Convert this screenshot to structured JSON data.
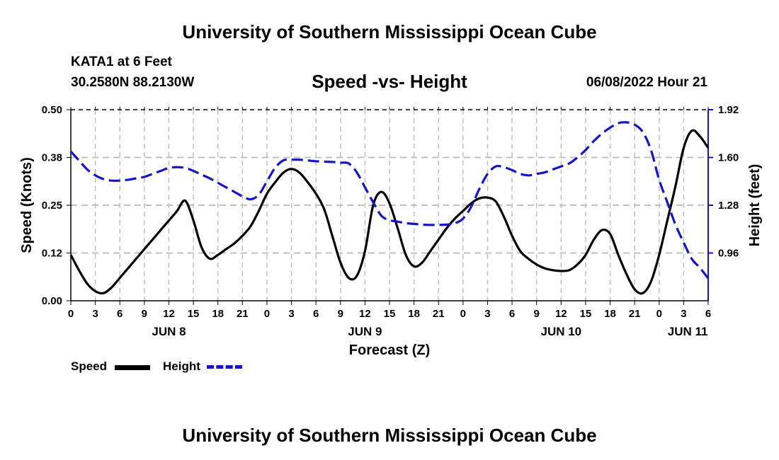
{
  "header": {
    "title": "University of Southern Mississippi Ocean Cube",
    "station": "KATA1 at 6 Feet",
    "coordinates": "30.2580N  88.2130W",
    "chart_title": "Speed -vs- Height",
    "datetime": "06/08/2022 Hour 21"
  },
  "footer": {
    "title": "University of Southern Mississippi Ocean Cube"
  },
  "legend": {
    "speed_label": "Speed",
    "height_label": "Height"
  },
  "colors": {
    "speed": "#000000",
    "height": "#1515c8",
    "grid": "#c0c0c0"
  },
  "chart_data": {
    "type": "line",
    "title": "Speed -vs- Height",
    "xlabel": "Forecast (Z)",
    "ylabel": "Speed (Knots)",
    "y2label": "Height (feet)",
    "xlim": [
      0,
      78
    ],
    "ylim": [
      0,
      0.5
    ],
    "y2lim": [
      0.64,
      1.92
    ],
    "grid": true,
    "legend_position": "bottom-left",
    "x_tick_values": [
      0,
      3,
      6,
      9,
      12,
      15,
      18,
      21,
      24,
      27,
      30,
      33,
      36,
      39,
      42,
      45,
      48,
      51,
      54,
      57,
      60,
      63,
      66,
      69,
      72,
      75,
      78
    ],
    "x_tick_labels": [
      "0",
      "3",
      "6",
      "9",
      "12",
      "15",
      "18",
      "21",
      "0",
      "3",
      "6",
      "9",
      "12",
      "15",
      "18",
      "21",
      "0",
      "3",
      "6",
      "9",
      "12",
      "15",
      "18",
      "21",
      "0",
      "3",
      "6"
    ],
    "y_tick_values": [
      0.0,
      0.125,
      0.25,
      0.375,
      0.5
    ],
    "y_tick_labels": [
      "0.00",
      "0.12",
      "0.25",
      "0.38",
      "0.50"
    ],
    "y2_tick_values": [
      0.96,
      1.28,
      1.6,
      1.92
    ],
    "y2_tick_labels": [
      "0.96",
      "1.28",
      "1.60",
      "1.92"
    ],
    "date_labels": [
      {
        "label": "JUN 8",
        "x": 12
      },
      {
        "label": "JUN 9",
        "x": 36
      },
      {
        "label": "JUN 10",
        "x": 60
      },
      {
        "label": "JUN 11",
        "x": 75.5
      }
    ],
    "series": [
      {
        "name": "Speed",
        "axis": "left",
        "style": "solid",
        "x": [
          0,
          1,
          2,
          3,
          4,
          5,
          6,
          7,
          8,
          9,
          10,
          11,
          12,
          13,
          14,
          15,
          16,
          17,
          18,
          19,
          20,
          21,
          22,
          23,
          24,
          25,
          26,
          27,
          28,
          29,
          30,
          31,
          32,
          33,
          34,
          35,
          36,
          37,
          38,
          39,
          40,
          41,
          42,
          43,
          44,
          45,
          46,
          47,
          48,
          49,
          50,
          51,
          52,
          53,
          54,
          55,
          56,
          57,
          58,
          59,
          60,
          61,
          62,
          63,
          64,
          65,
          66,
          67,
          68,
          69,
          70,
          71,
          72,
          73,
          74,
          75,
          76,
          77,
          78
        ],
        "values": [
          0.12,
          0.08,
          0.045,
          0.025,
          0.02,
          0.035,
          0.06,
          0.085,
          0.11,
          0.135,
          0.16,
          0.185,
          0.21,
          0.235,
          0.262,
          0.21,
          0.14,
          0.11,
          0.12,
          0.135,
          0.15,
          0.17,
          0.195,
          0.235,
          0.28,
          0.31,
          0.335,
          0.345,
          0.335,
          0.31,
          0.28,
          0.24,
          0.17,
          0.1,
          0.06,
          0.065,
          0.13,
          0.25,
          0.285,
          0.255,
          0.19,
          0.12,
          0.09,
          0.1,
          0.13,
          0.16,
          0.19,
          0.215,
          0.235,
          0.255,
          0.268,
          0.27,
          0.26,
          0.22,
          0.17,
          0.13,
          0.11,
          0.095,
          0.085,
          0.08,
          0.078,
          0.08,
          0.095,
          0.12,
          0.16,
          0.185,
          0.175,
          0.12,
          0.07,
          0.03,
          0.02,
          0.05,
          0.12,
          0.21,
          0.3,
          0.4,
          0.445,
          0.43,
          0.4
        ]
      },
      {
        "name": "Height",
        "axis": "right",
        "style": "dashed",
        "x": [
          0,
          1,
          2,
          3,
          4,
          5,
          6,
          7,
          8,
          9,
          10,
          11,
          12,
          13,
          14,
          15,
          16,
          17,
          18,
          19,
          20,
          21,
          22,
          23,
          24,
          25,
          26,
          27,
          28,
          29,
          30,
          31,
          32,
          33,
          34,
          35,
          36,
          37,
          38,
          39,
          40,
          41,
          42,
          43,
          44,
          45,
          46,
          47,
          48,
          49,
          50,
          51,
          52,
          53,
          54,
          55,
          56,
          57,
          58,
          59,
          60,
          61,
          62,
          63,
          64,
          65,
          66,
          67,
          68,
          69,
          70,
          71,
          72,
          73,
          74,
          75,
          76,
          77,
          78
        ],
        "values": [
          1.64,
          1.58,
          1.52,
          1.48,
          1.455,
          1.445,
          1.445,
          1.45,
          1.46,
          1.47,
          1.49,
          1.51,
          1.53,
          1.535,
          1.53,
          1.51,
          1.485,
          1.46,
          1.43,
          1.4,
          1.37,
          1.34,
          1.32,
          1.35,
          1.44,
          1.53,
          1.58,
          1.585,
          1.585,
          1.58,
          1.575,
          1.572,
          1.57,
          1.565,
          1.56,
          1.5,
          1.4,
          1.3,
          1.21,
          1.18,
          1.17,
          1.16,
          1.155,
          1.15,
          1.148,
          1.148,
          1.15,
          1.16,
          1.19,
          1.27,
          1.39,
          1.49,
          1.54,
          1.535,
          1.515,
          1.49,
          1.48,
          1.49,
          1.5,
          1.52,
          1.54,
          1.56,
          1.6,
          1.65,
          1.71,
          1.76,
          1.8,
          1.83,
          1.835,
          1.82,
          1.77,
          1.65,
          1.45,
          1.3,
          1.15,
          1.03,
          0.92,
          0.86,
          0.79
        ]
      }
    ]
  }
}
